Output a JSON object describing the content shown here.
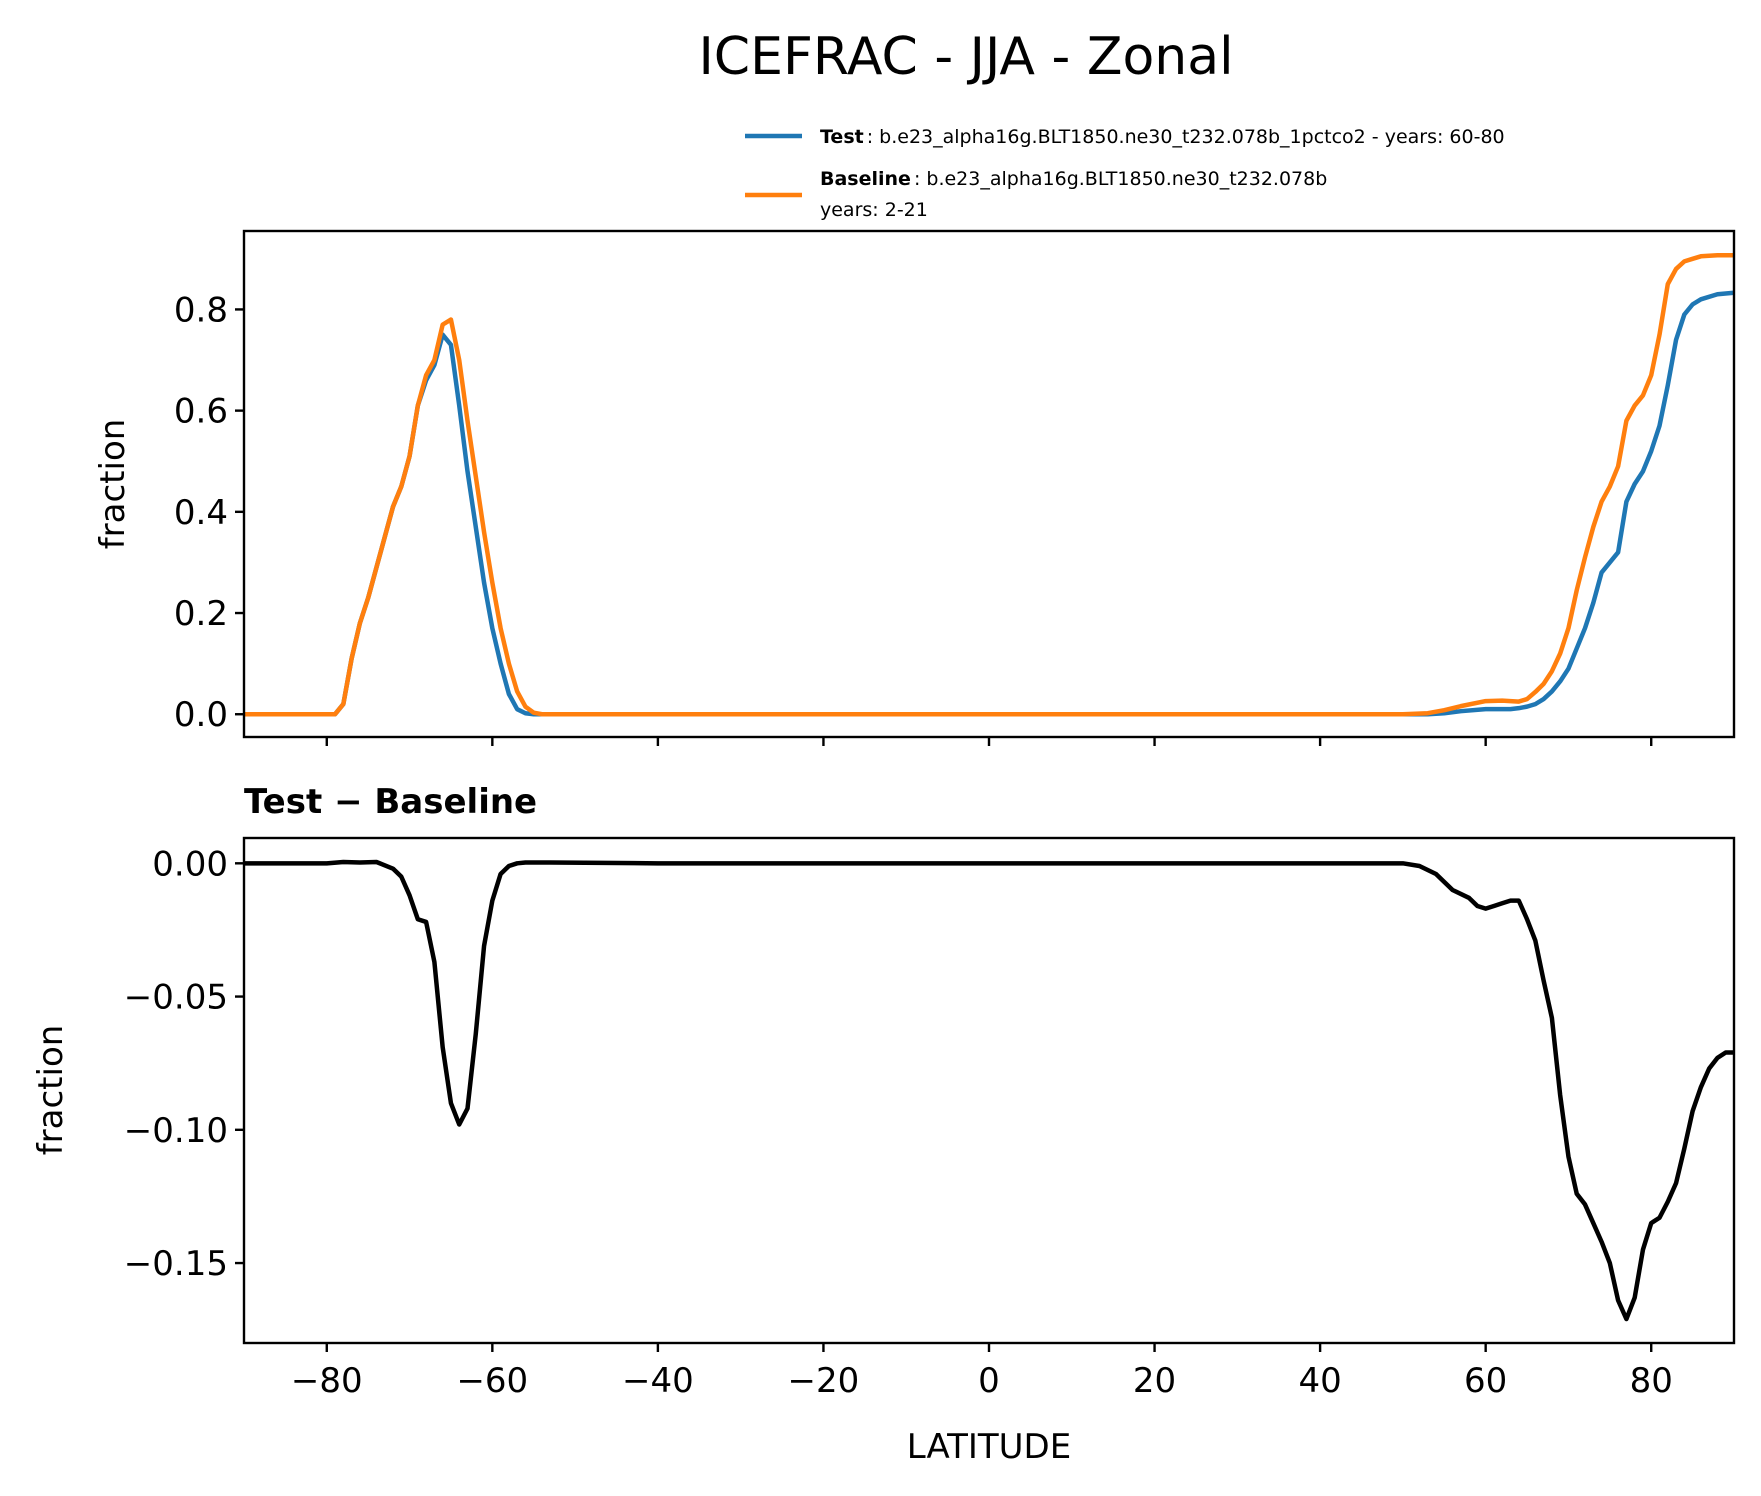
{
  "title": "ICEFRAC - JJA - Zonal",
  "legend": {
    "test_bold": "Test",
    "test_text": ": b.e23_alpha16g.BLT1850.ne30_t232.078b_1pctco2 - years: 60-80",
    "base_bold": "Baseline",
    "base_text": ": b.e23_alpha16g.BLT1850.ne30_t232.078b",
    "base_text2": "years: 2-21"
  },
  "colors": {
    "test": "#1f77b4",
    "baseline": "#ff7f0e",
    "diff": "#000000"
  },
  "chart_data": [
    {
      "type": "line",
      "xlabel": "",
      "ylabel": "fraction",
      "xlim": [
        -90,
        90
      ],
      "ylim": [
        -0.045,
        0.955
      ],
      "yticks": [
        0.0,
        0.2,
        0.4,
        0.6,
        0.8
      ],
      "ytick_labels": [
        "0.0",
        "0.2",
        "0.4",
        "0.6",
        "0.8"
      ],
      "xticks": [
        -80,
        -60,
        -40,
        -20,
        0,
        20,
        40,
        60,
        80
      ],
      "legend_position": "above-right",
      "series": [
        {
          "name": "Test",
          "x": [
            -90,
            -79,
            -78,
            -77,
            -76,
            -75,
            -74,
            -73,
            -72,
            -71,
            -70,
            -69,
            -68,
            -67,
            -66,
            -65,
            -64,
            -63,
            -62,
            -61,
            -60,
            -59,
            -58,
            -57,
            -56,
            -55,
            -54,
            -40,
            0,
            40,
            50,
            53,
            55,
            57,
            60,
            62,
            63,
            64,
            65,
            66,
            67,
            68,
            69,
            70,
            71,
            72,
            73,
            74,
            75,
            76,
            77,
            78,
            79,
            80,
            81,
            82,
            83,
            84,
            85,
            86,
            88,
            90
          ],
          "y": [
            0,
            0,
            0.02,
            0.11,
            0.18,
            0.23,
            0.29,
            0.35,
            0.41,
            0.45,
            0.51,
            0.61,
            0.66,
            0.69,
            0.75,
            0.73,
            0.61,
            0.48,
            0.37,
            0.26,
            0.17,
            0.1,
            0.04,
            0.01,
            0.002,
            0,
            0,
            0,
            0,
            0,
            0,
            0,
            0.002,
            0.006,
            0.01,
            0.01,
            0.01,
            0.012,
            0.015,
            0.02,
            0.03,
            0.045,
            0.065,
            0.09,
            0.13,
            0.17,
            0.22,
            0.28,
            0.3,
            0.32,
            0.42,
            0.455,
            0.48,
            0.52,
            0.57,
            0.65,
            0.74,
            0.79,
            0.81,
            0.82,
            0.83,
            0.833
          ]
        },
        {
          "name": "Baseline",
          "x": [
            -90,
            -79,
            -78,
            -77,
            -76,
            -75,
            -74,
            -73,
            -72,
            -71,
            -70,
            -69,
            -68,
            -67,
            -66,
            -65,
            -64,
            -63,
            -62,
            -61,
            -60,
            -59,
            -58,
            -57,
            -56,
            -55,
            -54,
            -40,
            0,
            40,
            50,
            53,
            55,
            57,
            60,
            62,
            63,
            64,
            65,
            66,
            67,
            68,
            69,
            70,
            71,
            72,
            73,
            74,
            75,
            76,
            77,
            78,
            79,
            80,
            81,
            82,
            83,
            84,
            85,
            86,
            88,
            90
          ],
          "y": [
            0,
            0,
            0.02,
            0.11,
            0.18,
            0.23,
            0.29,
            0.35,
            0.41,
            0.45,
            0.51,
            0.61,
            0.67,
            0.7,
            0.77,
            0.78,
            0.7,
            0.58,
            0.47,
            0.36,
            0.26,
            0.17,
            0.1,
            0.045,
            0.015,
            0.003,
            0,
            0,
            0,
            0,
            0,
            0.002,
            0.008,
            0.016,
            0.026,
            0.027,
            0.026,
            0.025,
            0.03,
            0.044,
            0.06,
            0.085,
            0.12,
            0.17,
            0.245,
            0.31,
            0.37,
            0.42,
            0.45,
            0.49,
            0.58,
            0.61,
            0.63,
            0.67,
            0.75,
            0.85,
            0.88,
            0.895,
            0.9,
            0.905,
            0.907,
            0.907
          ]
        }
      ]
    },
    {
      "type": "line",
      "title": "Test − Baseline",
      "xlabel": "LATITUDE",
      "ylabel": "fraction",
      "xlim": [
        -90,
        90
      ],
      "ylim": [
        -0.18,
        0.0095
      ],
      "yticks": [
        0.0,
        -0.05,
        -0.1,
        -0.15
      ],
      "ytick_labels": [
        "0.00",
        "−0.05",
        "−0.10",
        "−0.15"
      ],
      "xticks": [
        -80,
        -60,
        -40,
        -20,
        0,
        20,
        40,
        60,
        80
      ],
      "xtick_labels": [
        "−80",
        "−60",
        "−40",
        "−20",
        "0",
        "20",
        "40",
        "60",
        "80"
      ],
      "series": [
        {
          "x": [
            -90,
            -80,
            -78,
            -76,
            -74,
            -72,
            -71,
            -70,
            -69,
            -68,
            -67,
            -66,
            -65,
            -64,
            -63,
            -62,
            -61,
            -60,
            -59,
            -58,
            -57,
            -56,
            -55,
            -54,
            -53,
            -40,
            0,
            40,
            48,
            50,
            52,
            54,
            55,
            56,
            58,
            59,
            60,
            61,
            62,
            63,
            64,
            65,
            66,
            67,
            68,
            69,
            70,
            71,
            72,
            73,
            74,
            75,
            76,
            77,
            78,
            79,
            80,
            81,
            82,
            83,
            84,
            85,
            86,
            87,
            88,
            89,
            90
          ],
          "y": [
            0,
            0,
            0.0005,
            0.0003,
            0.0005,
            -0.002,
            -0.005,
            -0.012,
            -0.021,
            -0.022,
            -0.037,
            -0.069,
            -0.09,
            -0.098,
            -0.092,
            -0.064,
            -0.031,
            -0.014,
            -0.004,
            -0.001,
            0,
            0.0003,
            0.0003,
            0.0003,
            0.0003,
            0,
            0,
            0,
            0,
            0,
            -0.001,
            -0.004,
            -0.007,
            -0.01,
            -0.013,
            -0.016,
            -0.017,
            -0.016,
            -0.015,
            -0.014,
            -0.014,
            -0.021,
            -0.029,
            -0.044,
            -0.058,
            -0.087,
            -0.11,
            -0.124,
            -0.128,
            -0.135,
            -0.142,
            -0.15,
            -0.164,
            -0.171,
            -0.163,
            -0.145,
            -0.135,
            -0.133,
            -0.127,
            -0.12,
            -0.107,
            -0.093,
            -0.084,
            -0.077,
            -0.073,
            -0.071,
            -0.071
          ]
        }
      ]
    }
  ]
}
